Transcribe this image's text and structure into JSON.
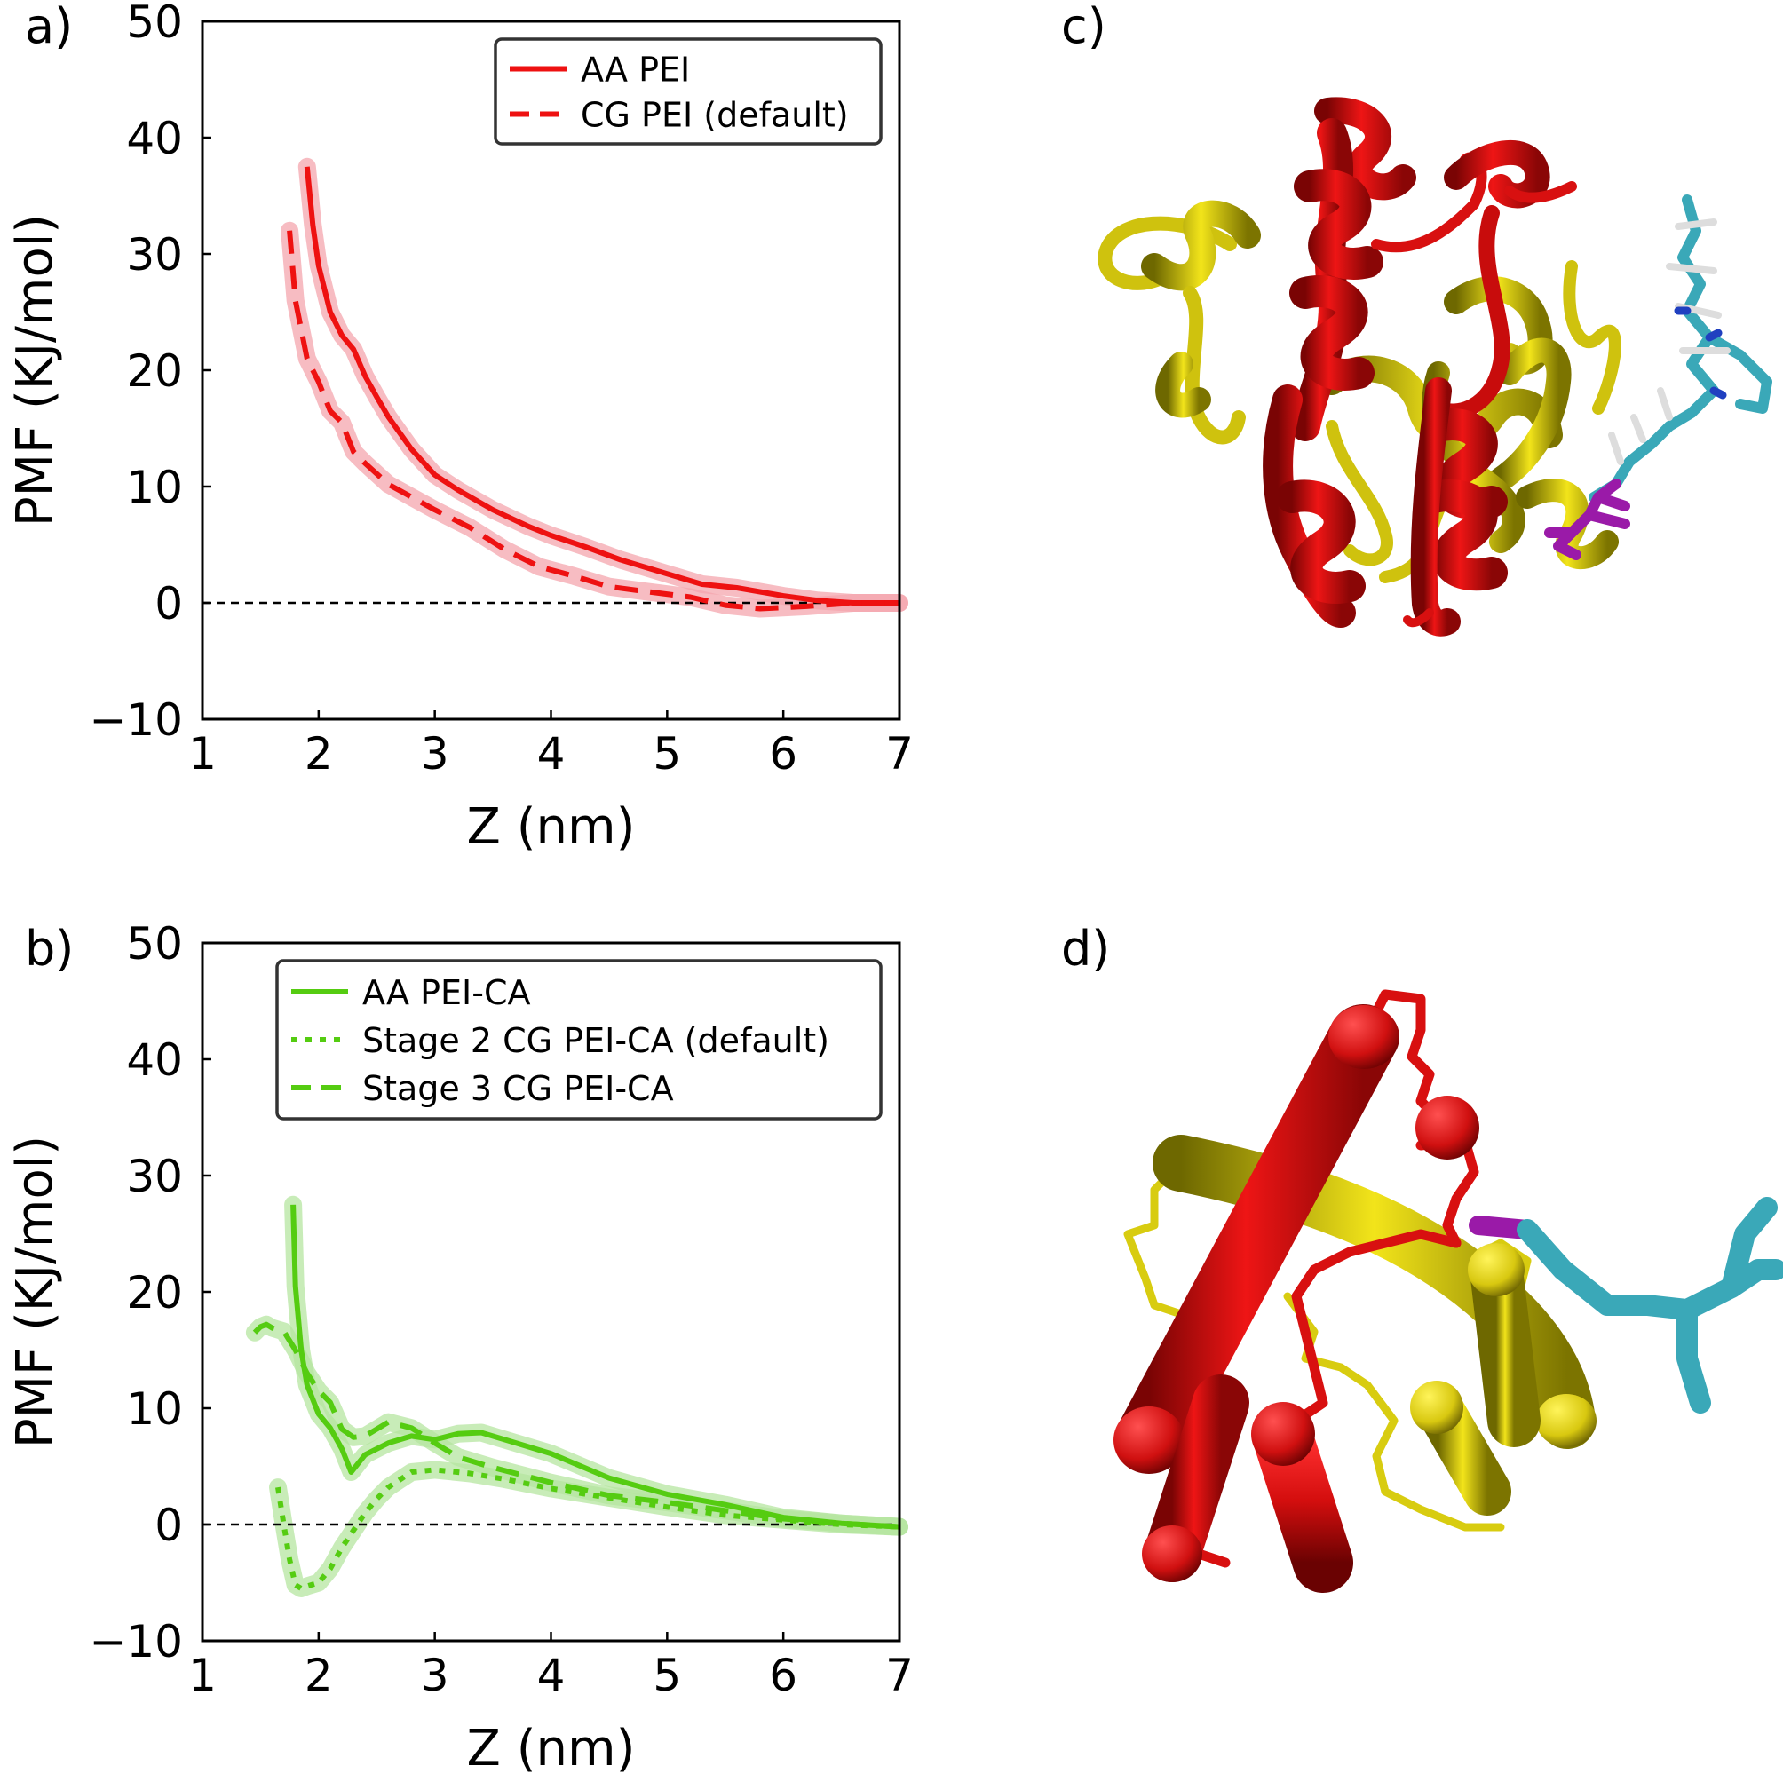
{
  "panel_labels": {
    "a": "a)",
    "b": "b)",
    "c": "c)",
    "d": "d)"
  },
  "colors": {
    "red": "#ee1111",
    "red_band": "#f4a6ad",
    "green": "#55cc11",
    "green_band": "#b6e6a0",
    "helix_red": "#d81010",
    "helix_yellow": "#d8cc10",
    "ligand_cyan": "#3aa8b8",
    "ligand_magenta": "#9a1aa8"
  },
  "chart_data": [
    {
      "type": "line",
      "xlabel": "Z (nm)",
      "ylabel": "PMF (KJ/mol)",
      "xlim": [
        1,
        7
      ],
      "ylim": [
        -10,
        50
      ],
      "xticks": [
        "1",
        "2",
        "3",
        "4",
        "5",
        "6",
        "7"
      ],
      "yticks": [
        "−10",
        "0",
        "10",
        "20",
        "30",
        "40",
        "50"
      ],
      "reference_line_y": 0,
      "legend_position": "top-right",
      "series": [
        {
          "name": "AA PEI",
          "style": "solid",
          "color": "#ee1111",
          "x": [
            1.9,
            1.95,
            2.0,
            2.1,
            2.2,
            2.3,
            2.4,
            2.5,
            2.6,
            2.8,
            3.0,
            3.2,
            3.5,
            3.8,
            4.0,
            4.3,
            4.6,
            5.0,
            5.3,
            5.6,
            6.0,
            6.3,
            6.6,
            7.0
          ],
          "y": [
            37.5,
            32.5,
            29.0,
            25.0,
            23.0,
            21.8,
            19.5,
            17.7,
            16.0,
            13.2,
            11.0,
            9.7,
            8.0,
            6.6,
            5.8,
            4.8,
            3.7,
            2.5,
            1.6,
            1.3,
            0.6,
            0.2,
            0.0,
            0.0
          ]
        },
        {
          "name": "CG PEI (default)",
          "style": "dashed",
          "color": "#ee1111",
          "x": [
            1.75,
            1.8,
            1.9,
            2.0,
            2.1,
            2.2,
            2.3,
            2.4,
            2.6,
            2.8,
            3.0,
            3.3,
            3.6,
            3.9,
            4.2,
            4.5,
            4.8,
            5.2,
            5.5,
            5.8,
            6.2,
            6.6,
            7.0
          ],
          "y": [
            32.0,
            26.0,
            21.0,
            19.0,
            16.5,
            15.5,
            13.0,
            12.0,
            10.2,
            9.1,
            8.0,
            6.5,
            4.6,
            3.1,
            2.3,
            1.4,
            1.0,
            0.5,
            -0.2,
            -0.5,
            -0.3,
            0.0,
            0.0
          ]
        }
      ]
    },
    {
      "type": "line",
      "xlabel": "Z (nm)",
      "ylabel": "PMF (KJ/mol)",
      "xlim": [
        1,
        7
      ],
      "ylim": [
        -10,
        50
      ],
      "xticks": [
        "1",
        "2",
        "3",
        "4",
        "5",
        "6",
        "7"
      ],
      "yticks": [
        "−10",
        "0",
        "10",
        "20",
        "30",
        "40",
        "50"
      ],
      "reference_line_y": 0,
      "legend_position": "top-right",
      "series": [
        {
          "name": "AA PEI-CA",
          "style": "solid",
          "color": "#55cc11",
          "x": [
            1.78,
            1.8,
            1.85,
            1.9,
            2.0,
            2.1,
            2.2,
            2.28,
            2.4,
            2.6,
            2.8,
            3.0,
            3.2,
            3.4,
            3.7,
            4.0,
            4.5,
            5.0,
            5.5,
            6.0,
            6.5,
            7.0
          ],
          "y": [
            27.5,
            20.5,
            15.0,
            12.0,
            9.5,
            8.3,
            6.5,
            4.5,
            6.0,
            7.0,
            7.6,
            7.3,
            7.8,
            7.9,
            7.0,
            6.1,
            4.0,
            2.6,
            1.7,
            0.6,
            0.1,
            -0.2
          ]
        },
        {
          "name": "Stage 2 CG PEI-CA (default)",
          "style": "dotted",
          "color": "#55cc11",
          "x": [
            1.65,
            1.7,
            1.75,
            1.8,
            1.85,
            1.9,
            2.0,
            2.1,
            2.2,
            2.3,
            2.4,
            2.5,
            2.6,
            2.8,
            3.0,
            3.3,
            3.6,
            4.0,
            4.5,
            5.0,
            5.5,
            6.0,
            6.5,
            7.0
          ],
          "y": [
            3.2,
            0.0,
            -3.0,
            -5.2,
            -5.5,
            -5.3,
            -5.0,
            -3.8,
            -2.0,
            -0.5,
            1.0,
            2.2,
            3.2,
            4.5,
            4.7,
            4.4,
            3.9,
            3.1,
            2.3,
            1.5,
            0.8,
            0.4,
            0.0,
            -0.2
          ]
        },
        {
          "name": "Stage 3 CG PEI-CA",
          "style": "dashed",
          "color": "#55cc11",
          "x": [
            1.45,
            1.5,
            1.55,
            1.6,
            1.7,
            1.8,
            1.9,
            2.0,
            2.1,
            2.2,
            2.3,
            2.4,
            2.6,
            2.8,
            3.0,
            3.2,
            3.5,
            4.0,
            4.5,
            5.0,
            5.5,
            6.0,
            6.5,
            7.0
          ],
          "y": [
            16.5,
            17.0,
            17.2,
            16.9,
            16.6,
            15.0,
            13.0,
            11.5,
            10.5,
            8.2,
            7.5,
            7.6,
            8.8,
            8.3,
            7.0,
            5.8,
            4.9,
            3.6,
            2.5,
            1.9,
            1.2,
            0.5,
            0.1,
            -0.2
          ]
        }
      ]
    }
  ]
}
